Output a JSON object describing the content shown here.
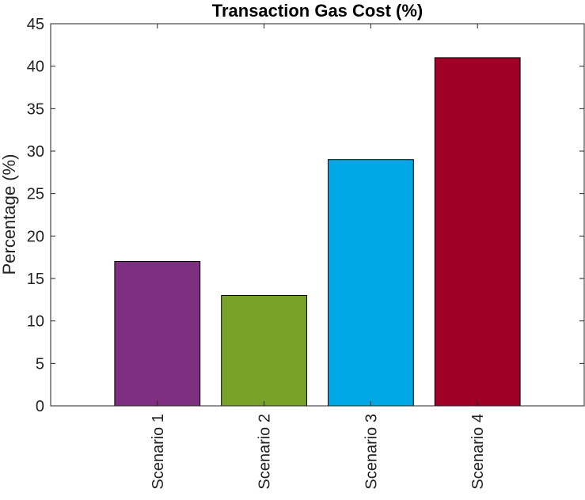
{
  "chart_data": {
    "type": "bar",
    "title": "Transaction Gas Cost (%)",
    "xlabel": "",
    "ylabel": "Percentage (%)",
    "categories": [
      "Scenario 1",
      "Scenario 2",
      "Scenario 3",
      "Scenario 4"
    ],
    "values": [
      17,
      13,
      29,
      41
    ],
    "colors": [
      "#7e2f7f",
      "#77a22a",
      "#00a8e6",
      "#a00026"
    ],
    "ylim": [
      0,
      45
    ],
    "yticks": [
      "0",
      "5",
      "10",
      "15",
      "20",
      "25",
      "30",
      "35",
      "40",
      "45"
    ],
    "grid": false,
    "legend": false
  }
}
